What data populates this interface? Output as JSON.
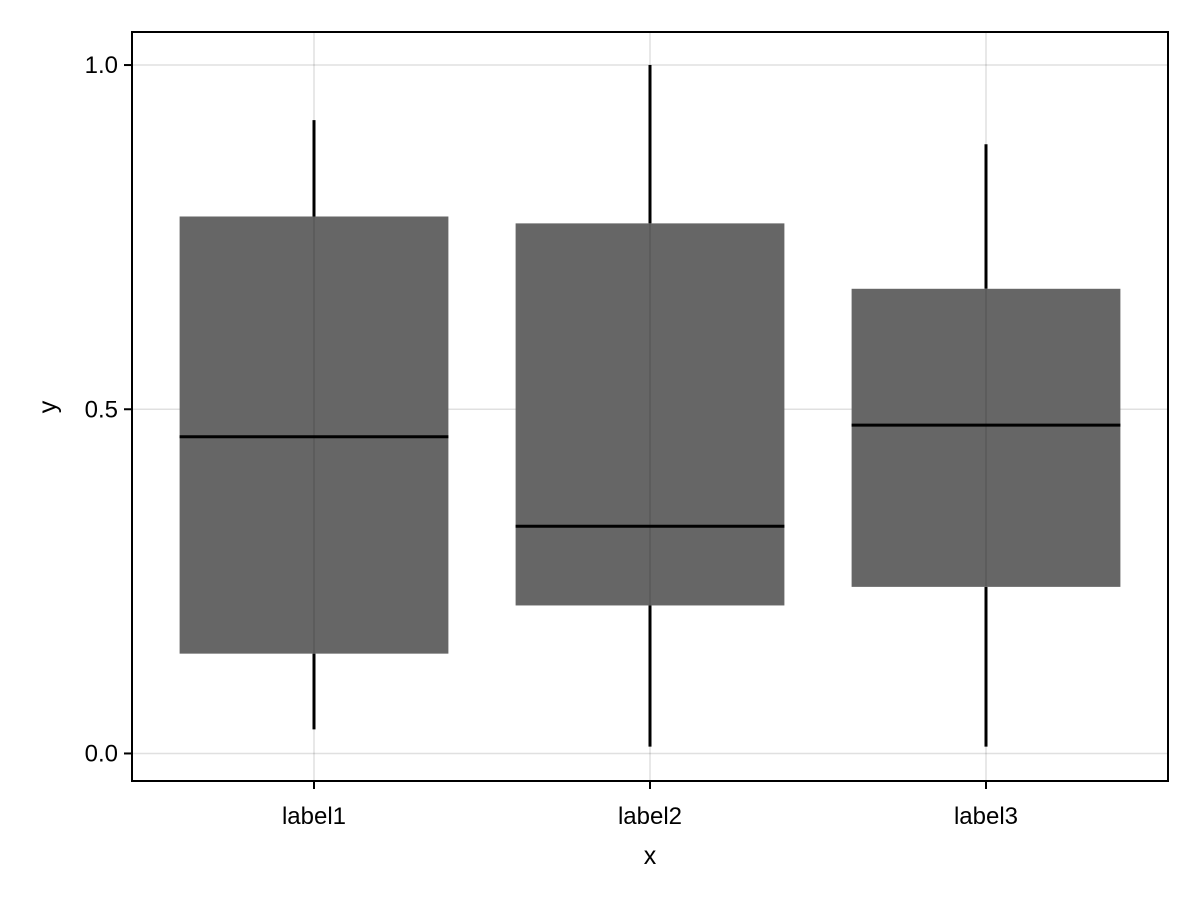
{
  "chart_data": {
    "type": "boxplot",
    "title": "",
    "xlabel": "x",
    "ylabel": "y",
    "categories": [
      "label1",
      "label2",
      "label3"
    ],
    "boxes": [
      {
        "category": "label1",
        "whisker_low": 0.035,
        "q1": 0.145,
        "median": 0.46,
        "q3": 0.78,
        "whisker_high": 0.92
      },
      {
        "category": "label2",
        "whisker_low": 0.01,
        "q1": 0.215,
        "median": 0.33,
        "q3": 0.77,
        "whisker_high": 1.0
      },
      {
        "category": "label3",
        "whisker_low": 0.01,
        "q1": 0.242,
        "median": 0.477,
        "q3": 0.675,
        "whisker_high": 0.885
      }
    ],
    "ylim": [
      -0.04,
      1.048
    ],
    "yticks": [
      0.0,
      0.5,
      1.0
    ],
    "ytick_labels": [
      "0.0",
      "0.5",
      "1.0"
    ],
    "grid": true,
    "colors": {
      "box": "#666666",
      "line": "#000000",
      "grid": "#e0e0e0",
      "frame": "#000000"
    }
  }
}
